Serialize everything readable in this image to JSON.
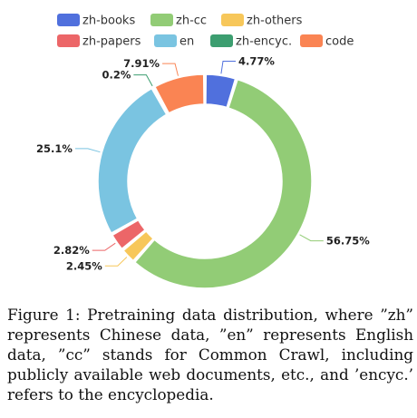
{
  "chart_data": {
    "type": "pie",
    "variant": "donut",
    "legend_position": "top",
    "series": [
      {
        "name": "zh-books",
        "value": 4.77,
        "label": "4.77%",
        "color": "#5070dd"
      },
      {
        "name": "zh-cc",
        "value": 56.75,
        "label": "56.75%",
        "color": "#92cc76"
      },
      {
        "name": "zh-others",
        "value": 2.45,
        "label": "2.45%",
        "color": "#f7c75a"
      },
      {
        "name": "zh-papers",
        "value": 2.82,
        "label": "2.82%",
        "color": "#ec6668"
      },
      {
        "name": "en",
        "value": 25.1,
        "label": "25.1%",
        "color": "#7ac4e1"
      },
      {
        "name": "zh-encyc.",
        "value": 0.2,
        "label": "0.2%",
        "color": "#3c9e70"
      },
      {
        "name": "code",
        "value": 7.91,
        "label": "7.91%",
        "color": "#fa8453"
      }
    ]
  },
  "caption": "Figure 1: Pretraining data distribution, where ”zh” represents Chinese data, ”en” represents English data, ”cc” stands for Common Crawl, including publicly available web documents, etc., and ’encyc.’ refers to the encyclopedia."
}
